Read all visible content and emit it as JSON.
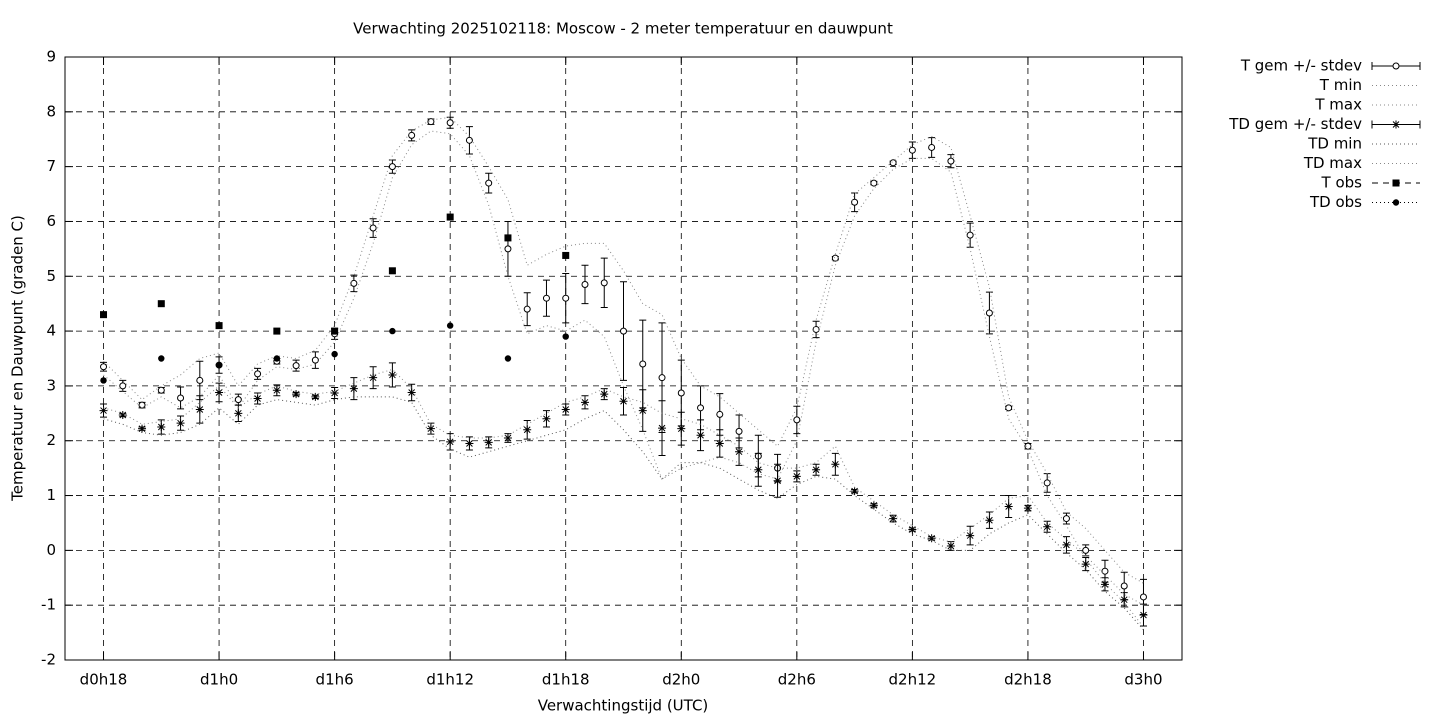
{
  "chart_data": {
    "type": "errorbar",
    "title": "Verwachting 2025102118: Moscow - 2 meter temperatuur en dauwpunt",
    "xlabel": "Verwachtingstijd (UTC)",
    "ylabel": "Temperatuur en Dauwpunt (graden C)",
    "xlim": [
      16,
      74
    ],
    "xticks": [
      {
        "value": 18,
        "label": "d0h18"
      },
      {
        "value": 24,
        "label": "d1h0"
      },
      {
        "value": 30,
        "label": "d1h6"
      },
      {
        "value": 36,
        "label": "d1h12"
      },
      {
        "value": 42,
        "label": "d1h18"
      },
      {
        "value": 48,
        "label": "d2h0"
      },
      {
        "value": 54,
        "label": "d2h6"
      },
      {
        "value": 60,
        "label": "d2h12"
      },
      {
        "value": 66,
        "label": "d2h18"
      },
      {
        "value": 72,
        "label": "d3h0"
      }
    ],
    "ylim": [
      -2,
      9
    ],
    "yticks": [
      -2,
      -1,
      0,
      1,
      2,
      3,
      4,
      5,
      6,
      7,
      8,
      9
    ],
    "grid": true,
    "legend": "outside-top-right",
    "x": [
      18,
      19,
      20,
      21,
      22,
      23,
      24,
      25,
      26,
      27,
      28,
      29,
      30,
      31,
      32,
      33,
      34,
      35,
      36,
      37,
      38,
      39,
      40,
      41,
      42,
      43,
      44,
      45,
      46,
      47,
      48,
      49,
      50,
      51,
      52,
      53,
      54,
      55,
      56,
      57,
      58,
      59,
      60,
      61,
      62,
      63,
      64,
      65,
      66,
      67,
      68,
      69,
      70,
      71,
      72
    ],
    "series": [
      {
        "name": "T gem +/- stdev",
        "color": "#000000",
        "marker": "circle",
        "values": [
          3.35,
          3.0,
          2.65,
          2.92,
          2.78,
          3.1,
          3.38,
          2.75,
          3.22,
          3.45,
          3.37,
          3.47,
          3.95,
          4.87,
          5.88,
          7.0,
          7.57,
          7.82,
          7.8,
          7.48,
          6.7,
          5.5,
          4.4,
          4.6,
          4.6,
          4.85,
          4.88,
          4.0,
          3.4,
          3.15,
          2.87,
          2.6,
          2.48,
          2.17,
          1.72,
          1.5,
          2.38,
          4.03,
          5.33,
          6.35,
          6.7,
          7.07,
          7.3,
          7.35,
          7.1,
          5.75,
          4.33,
          2.6,
          1.9,
          1.23,
          0.58,
          0.0,
          -0.38,
          -0.65,
          -0.85
        ],
        "errors": [
          0.08,
          0.1,
          0.05,
          0.05,
          0.2,
          0.35,
          0.15,
          0.1,
          0.1,
          0.05,
          0.1,
          0.15,
          0.1,
          0.15,
          0.17,
          0.12,
          0.1,
          0.05,
          0.1,
          0.25,
          0.18,
          0.5,
          0.3,
          0.33,
          0.45,
          0.35,
          0.45,
          0.9,
          0.8,
          1.0,
          0.6,
          0.4,
          0.38,
          0.3,
          0.38,
          0.25,
          0.25,
          0.15,
          0.03,
          0.17,
          0.03,
          0.03,
          0.15,
          0.18,
          0.12,
          0.22,
          0.38,
          0.03,
          0.05,
          0.17,
          0.1,
          0.1,
          0.2,
          0.25,
          0.32
        ]
      },
      {
        "name": "T min",
        "color": "#888888",
        "line": "dotted",
        "values": [
          3.2,
          2.9,
          2.6,
          2.8,
          2.6,
          2.8,
          3.2,
          2.6,
          3.1,
          3.35,
          3.3,
          3.4,
          3.8,
          4.6,
          5.6,
          6.8,
          7.4,
          7.65,
          7.6,
          7.2,
          6.3,
          5.0,
          3.95,
          4.1,
          4.0,
          4.2,
          3.9,
          3.0,
          2.2,
          1.3,
          1.5,
          1.6,
          1.7,
          1.6,
          1.4,
          1.3,
          2.0,
          3.8,
          5.2,
          6.1,
          6.6,
          6.95,
          7.15,
          7.15,
          6.9,
          5.5,
          3.9,
          2.4,
          1.85,
          1.0,
          0.45,
          -0.15,
          -0.6,
          -0.95,
          -1.4
        ]
      },
      {
        "name": "T max",
        "color": "#888888",
        "line": "dotted",
        "values": [
          3.45,
          3.1,
          2.75,
          3.0,
          3.2,
          3.5,
          3.6,
          3.0,
          3.4,
          3.55,
          3.5,
          3.65,
          4.1,
          5.0,
          6.1,
          7.2,
          7.65,
          7.85,
          7.9,
          7.55,
          7.0,
          6.4,
          5.2,
          5.4,
          5.55,
          5.6,
          5.6,
          5.1,
          4.5,
          4.3,
          3.5,
          3.0,
          2.8,
          2.5,
          2.2,
          1.9,
          2.6,
          4.2,
          5.4,
          6.5,
          6.8,
          7.1,
          7.4,
          7.55,
          7.35,
          6.1,
          4.8,
          2.8,
          2.0,
          1.4,
          0.7,
          0.4,
          0.0,
          -0.4,
          -0.6
        ]
      },
      {
        "name": "TD gem +/- stdev",
        "color": "#000000",
        "marker": "star",
        "values": [
          2.55,
          2.47,
          2.22,
          2.25,
          2.32,
          2.57,
          2.88,
          2.5,
          2.77,
          2.92,
          2.85,
          2.8,
          2.87,
          2.95,
          3.15,
          3.2,
          2.88,
          2.22,
          1.98,
          1.95,
          1.97,
          2.05,
          2.2,
          2.4,
          2.57,
          2.7,
          2.85,
          2.72,
          2.55,
          2.23,
          2.22,
          2.1,
          1.95,
          1.8,
          1.47,
          1.27,
          1.35,
          1.47,
          1.57,
          1.08,
          0.82,
          0.58,
          0.38,
          0.22,
          0.08,
          0.27,
          0.55,
          0.8,
          0.77,
          0.43,
          0.1,
          -0.25,
          -0.62,
          -0.9,
          -1.18
        ],
        "errors": [
          0.12,
          0.03,
          0.03,
          0.13,
          0.13,
          0.25,
          0.17,
          0.15,
          0.1,
          0.1,
          0.03,
          0.03,
          0.1,
          0.2,
          0.2,
          0.22,
          0.15,
          0.1,
          0.15,
          0.12,
          0.1,
          0.08,
          0.17,
          0.15,
          0.1,
          0.12,
          0.1,
          0.25,
          0.38,
          0.5,
          0.3,
          0.28,
          0.25,
          0.25,
          0.3,
          0.3,
          0.1,
          0.1,
          0.2,
          0.03,
          0.03,
          0.06,
          0.03,
          0.03,
          0.08,
          0.17,
          0.15,
          0.2,
          0.05,
          0.1,
          0.15,
          0.12,
          0.12,
          0.13,
          0.2
        ]
      },
      {
        "name": "TD min",
        "color": "#555555",
        "line": "dotted",
        "values": [
          2.4,
          2.3,
          2.15,
          2.1,
          2.15,
          2.3,
          2.6,
          2.3,
          2.65,
          2.75,
          2.7,
          2.65,
          2.75,
          2.8,
          2.8,
          2.8,
          2.7,
          2.1,
          1.85,
          1.7,
          1.8,
          1.9,
          2.0,
          2.1,
          2.2,
          2.4,
          2.55,
          2.2,
          1.8,
          1.3,
          1.6,
          1.6,
          1.5,
          1.3,
          1.1,
          0.95,
          1.2,
          1.35,
          1.3,
          1.0,
          0.75,
          0.5,
          0.3,
          0.18,
          0.0,
          0.0,
          0.3,
          0.5,
          0.65,
          0.3,
          -0.05,
          -0.35,
          -0.75,
          -1.05,
          -1.45
        ]
      },
      {
        "name": "TD max",
        "color": "#888888",
        "line": "dotted",
        "values": [
          2.6,
          2.5,
          2.3,
          2.35,
          2.4,
          2.7,
          3.0,
          2.6,
          2.85,
          3.0,
          2.9,
          2.85,
          2.9,
          3.05,
          3.2,
          3.3,
          2.95,
          2.3,
          2.1,
          2.05,
          2.05,
          2.1,
          2.3,
          2.5,
          2.7,
          2.8,
          2.95,
          2.8,
          2.7,
          2.5,
          2.4,
          2.3,
          2.1,
          1.9,
          1.6,
          1.5,
          1.5,
          1.6,
          1.9,
          1.15,
          0.9,
          0.65,
          0.45,
          0.25,
          0.15,
          0.4,
          0.65,
          0.95,
          1.0,
          0.5,
          0.2,
          -0.1,
          -0.45,
          -0.8,
          -1.0
        ]
      },
      {
        "name": "T obs",
        "color": "#000000",
        "marker": "square",
        "line": "dashed",
        "x": [
          18,
          21,
          24,
          27,
          30,
          33,
          36,
          39,
          42
        ],
        "values": [
          4.3,
          4.5,
          4.1,
          4.0,
          4.0,
          5.1,
          6.08,
          5.7,
          5.38
        ]
      },
      {
        "name": "TD obs",
        "color": "#000000",
        "marker": "dot",
        "line": "dotted",
        "x": [
          18,
          21,
          24,
          27,
          30,
          33,
          36,
          39,
          42
        ],
        "values": [
          3.1,
          3.5,
          3.38,
          3.5,
          3.58,
          4.0,
          4.1,
          3.5,
          3.9
        ]
      }
    ]
  }
}
